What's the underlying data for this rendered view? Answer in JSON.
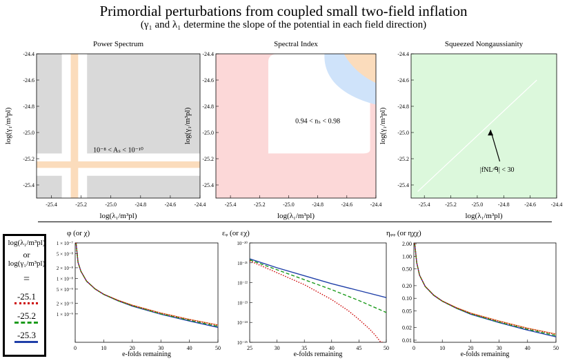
{
  "header": {
    "title": "Primordial perturbations from coupled small two-field inflation",
    "subtitle": "(γ₁ and λ₁ determine the slope of the potential in each field direction)"
  },
  "colors": {
    "gray_region": "#d9d9d9",
    "orange_region": "#fbdcbc",
    "pink_region": "#fcd8d8",
    "blue_region": "#cfe3fa",
    "green_region": "#dcf8dc",
    "series_-25.1": "#cc0000",
    "series_-25.2": "#1a9a1a",
    "series_-25.3": "#1f3fa8",
    "series_extra": "#d88a3a"
  },
  "legend": {
    "line1": "log(λ₁/m³pl)",
    "line2": "or",
    "line3": "log(γ₁/m³pl)",
    "equals": "=",
    "entries": [
      {
        "label": "-25.1",
        "style": "dotted",
        "color": "#cc0000"
      },
      {
        "label": "-25.2",
        "style": "dashed",
        "color": "#1a9a1a"
      },
      {
        "label": "-25.3",
        "style": "solid",
        "color": "#1f3fa8"
      }
    ]
  },
  "chart_data": [
    {
      "type": "heatmap",
      "title": "Power Spectrum",
      "xlabel": "log(λ₁/m³pl)",
      "ylabel": "log(γ₁/m³pl)",
      "xlim": [
        -25.5,
        -24.4
      ],
      "ylim": [
        -25.5,
        -24.4
      ],
      "xticks": [
        "-25.4",
        "-25.2",
        "-25.0",
        "-24.8",
        "-24.6",
        "-24.4"
      ],
      "yticks": [
        "-24.4",
        "-24.6",
        "-24.8",
        "-25.0",
        "-25.2",
        "-25.4"
      ],
      "annotation": "10⁻⁸ < Aₛ < 10⁻¹⁰",
      "regions": [
        {
          "name": "gray",
          "x": [
            -25.5,
            -24.4
          ],
          "y": [
            -25.5,
            -24.4
          ]
        },
        {
          "name": "white-band",
          "x": [
            -25.33,
            -25.16
          ],
          "y": [
            -25.5,
            -24.4
          ]
        },
        {
          "name": "white-band",
          "x": [
            -25.5,
            -24.4
          ],
          "y": [
            -25.33,
            -25.16
          ]
        },
        {
          "name": "orange-band",
          "x": [
            -25.27,
            -25.22
          ],
          "y": [
            -25.5,
            -24.4
          ]
        },
        {
          "name": "orange-band",
          "x": [
            -25.5,
            -24.4
          ],
          "y": [
            -25.27,
            -25.22
          ]
        }
      ]
    },
    {
      "type": "heatmap",
      "title": "Spectral Index",
      "xlabel": "log(λ₁/m³pl)",
      "ylabel": "log(γ₁/m³pl)",
      "xlim": [
        -25.5,
        -24.4
      ],
      "ylim": [
        -25.5,
        -24.4
      ],
      "xticks": [
        "-25.4",
        "-25.2",
        "-25.0",
        "-24.8",
        "-24.6",
        "-24.4"
      ],
      "yticks": [
        "-24.4",
        "-24.6",
        "-24.8",
        "-25.0",
        "-25.2",
        "-25.4"
      ],
      "annotation": "0.94 < nₛ < 0.98",
      "regions": [
        {
          "name": "pink",
          "x": [
            -25.5,
            -24.4
          ],
          "y": [
            -25.5,
            -24.4
          ]
        },
        {
          "name": "white",
          "x": [
            -25.14,
            -24.44
          ],
          "y": [
            -25.16,
            -24.4
          ]
        },
        {
          "name": "blue",
          "x": [
            -24.82,
            -24.4
          ],
          "y": [
            -24.75,
            -24.4
          ]
        },
        {
          "name": "orange",
          "x": [
            -24.62,
            -24.4
          ],
          "y": [
            -24.6,
            -24.4
          ]
        }
      ]
    },
    {
      "type": "heatmap",
      "title": "Squeezed Nongaussianity",
      "xlabel": "log(λ₁/m³pl)",
      "ylabel": "log(γ₁/m³pl)",
      "xlim": [
        -25.5,
        -24.4
      ],
      "ylim": [
        -25.5,
        -24.4
      ],
      "xticks": [
        "-25.4",
        "-25.2",
        "-25.0",
        "-24.8",
        "-24.6",
        "-24.4"
      ],
      "yticks": [
        "-24.4",
        "-24.6",
        "-24.8",
        "-25.0",
        "-25.2",
        "-25.4"
      ],
      "annotation": "|fNLˢᑫ| < 30",
      "regions": [
        {
          "name": "green",
          "x": [
            -25.5,
            -24.4
          ],
          "y": [
            -25.5,
            -24.4
          ]
        }
      ]
    },
    {
      "type": "line",
      "title": "φ (or χ)",
      "xlabel": "e-folds remaining",
      "xlim": [
        0,
        50
      ],
      "ylim_log10": [
        -9.8,
        -7
      ],
      "xticks": [
        "0",
        "10",
        "20",
        "30",
        "40",
        "50"
      ],
      "yticks": [
        {
          "value_log10": -7,
          "label": "1 × 10⁻⁷"
        },
        {
          "value_log10": -7.301,
          "label": "5 × 10⁻⁸"
        },
        {
          "value_log10": -7.699,
          "label": "2 × 10⁻⁸"
        },
        {
          "value_log10": -8,
          "label": "1 × 10⁻⁸"
        },
        {
          "value_log10": -8.301,
          "label": "5 × 10⁻⁹"
        },
        {
          "value_log10": -8.699,
          "label": "2 × 10⁻⁹"
        },
        {
          "value_log10": -9,
          "label": "1 × 10⁻⁹"
        }
      ],
      "series": [
        {
          "name": "-25.1",
          "x": [
            0.3,
            1,
            2,
            4,
            7,
            10,
            15,
            20,
            30,
            40,
            50
          ],
          "y_log10": [
            -7.0,
            -7.55,
            -7.8,
            -8.08,
            -8.3,
            -8.45,
            -8.62,
            -8.76,
            -8.98,
            -9.16,
            -9.32
          ]
        },
        {
          "name": "-25.2",
          "x": [
            0.3,
            1,
            2,
            4,
            7,
            10,
            15,
            20,
            30,
            40,
            50
          ],
          "y_log10": [
            -7.0,
            -7.55,
            -7.8,
            -8.08,
            -8.3,
            -8.45,
            -8.63,
            -8.77,
            -9.0,
            -9.18,
            -9.35
          ]
        },
        {
          "name": "-25.3",
          "x": [
            0.3,
            1,
            2,
            4,
            7,
            10,
            15,
            20,
            30,
            40,
            50
          ],
          "y_log10": [
            -7.0,
            -7.55,
            -7.8,
            -8.08,
            -8.3,
            -8.45,
            -8.63,
            -8.78,
            -9.01,
            -9.2,
            -9.38
          ]
        }
      ]
    },
    {
      "type": "line",
      "title": "εᵩ (or εχ)",
      "xlabel": "e-folds remaining",
      "xlim": [
        25,
        50
      ],
      "ylim_log10": [
        -25,
        -20
      ],
      "xticks": [
        "25",
        "30",
        "35",
        "40",
        "45",
        "50"
      ],
      "yticks": [
        {
          "value_log10": -20,
          "label": "10⁻²⁰"
        },
        {
          "value_log10": -21,
          "label": "10⁻²¹"
        },
        {
          "value_log10": -22,
          "label": "10⁻²²"
        },
        {
          "value_log10": -23,
          "label": "10⁻²³"
        },
        {
          "value_log10": -24,
          "label": "10⁻²⁴"
        },
        {
          "value_log10": -25,
          "label": "10⁻²⁵"
        }
      ],
      "series": [
        {
          "name": "-25.1",
          "x": [
            25,
            30,
            35,
            40,
            43,
            45,
            47,
            48,
            49,
            49.5
          ],
          "y_log10": [
            -20.9,
            -21.5,
            -22.1,
            -22.85,
            -23.4,
            -23.85,
            -24.35,
            -24.65,
            -25.0,
            -25.0
          ]
        },
        {
          "name": "-25.2",
          "x": [
            25,
            30,
            35,
            40,
            45,
            50
          ],
          "y_log10": [
            -20.85,
            -21.35,
            -21.85,
            -22.35,
            -22.9,
            -23.5
          ]
        },
        {
          "name": "-25.3",
          "x": [
            25,
            30,
            35,
            40,
            45,
            50
          ],
          "y_log10": [
            -20.8,
            -21.25,
            -21.65,
            -22.05,
            -22.4,
            -22.75
          ]
        }
      ]
    },
    {
      "type": "line",
      "title": "ηᵩᵩ (or ηχχ)",
      "xlabel": "e-folds remaining",
      "xlim": [
        0,
        50
      ],
      "ylim": [
        0,
        2.05
      ],
      "xticks": [
        "0",
        "10",
        "20",
        "30",
        "40",
        "50"
      ],
      "yticks": [
        "2.00",
        "1.00",
        "0.50",
        "0.20",
        "0.10",
        "0.05",
        "0.02",
        "0.01"
      ],
      "series": [
        {
          "name": "-25.1",
          "x": [
            0.3,
            1,
            2,
            4,
            7,
            10,
            15,
            20,
            30,
            40,
            50
          ],
          "y_log10": [
            0.3,
            -0.15,
            -0.45,
            -0.72,
            -0.93,
            -1.07,
            -1.23,
            -1.36,
            -1.55,
            -1.72,
            -1.86
          ]
        },
        {
          "name": "-25.2",
          "x": [
            0.3,
            1,
            2,
            4,
            7,
            10,
            15,
            20,
            30,
            40,
            50
          ],
          "y_log10": [
            0.3,
            -0.15,
            -0.45,
            -0.72,
            -0.93,
            -1.07,
            -1.24,
            -1.37,
            -1.57,
            -1.74,
            -1.89
          ]
        },
        {
          "name": "-25.3",
          "x": [
            0.3,
            1,
            2,
            4,
            7,
            10,
            15,
            20,
            30,
            40,
            50
          ],
          "y_log10": [
            0.3,
            -0.15,
            -0.45,
            -0.72,
            -0.93,
            -1.07,
            -1.24,
            -1.38,
            -1.58,
            -1.76,
            -1.92
          ]
        }
      ]
    }
  ]
}
